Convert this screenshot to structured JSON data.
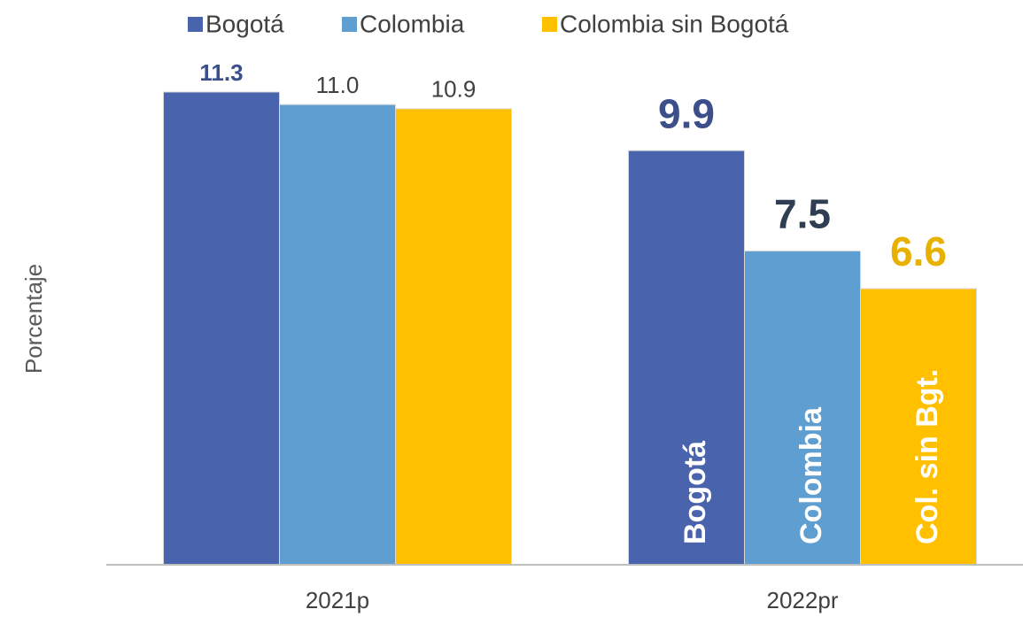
{
  "chart_data": {
    "type": "bar",
    "y_label": "Porcentaje",
    "categories": [
      "2021p",
      "2022pr"
    ],
    "series": [
      {
        "name": "Bogotá",
        "color": "#4a63ad",
        "values": [
          11.3,
          9.9
        ]
      },
      {
        "name": "Colombia",
        "color": "#5f9ed1",
        "values": [
          11,
          7.5
        ],
        "value_labels": [
          "11.0",
          "7.5"
        ]
      },
      {
        "name": "Colombia sin Bogotá",
        "color": "#ffc000",
        "values": [
          10.9,
          6.6
        ]
      }
    ],
    "annotations": [
      "Bogotá",
      "Colombia",
      "Col. sin Bgt."
    ],
    "ylim": [
      0,
      12
    ],
    "legend": "top"
  }
}
